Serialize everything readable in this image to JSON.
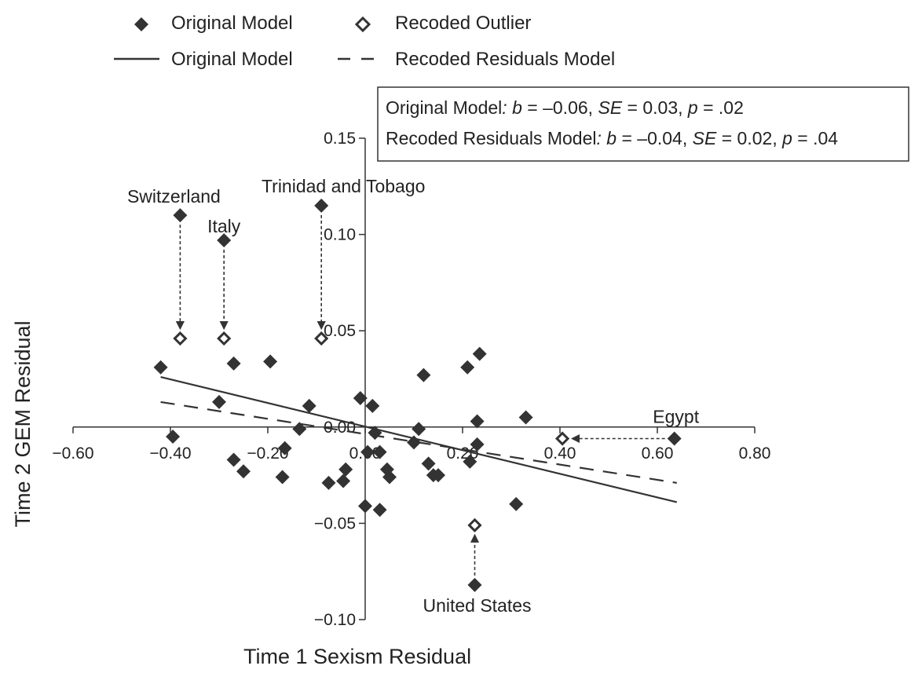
{
  "chart_data": {
    "type": "scatter",
    "title": "",
    "xlabel": "Time 1 Sexism Residual",
    "ylabel": "Time 2 GEM Residual",
    "xlim": [
      -0.6,
      0.8
    ],
    "ylim": [
      -0.1,
      0.15
    ],
    "x_ticks": [
      "−0.60",
      "−0.40",
      "−0.20",
      "0.00",
      "0.20",
      "0.40",
      "0.60",
      "0.80"
    ],
    "x_tick_values": [
      -0.6,
      -0.4,
      -0.2,
      0.0,
      0.2,
      0.4,
      0.6,
      0.8
    ],
    "y_ticks": [
      "0.15",
      "0.10",
      "0.05",
      "0.00",
      "−0.05",
      "−0.10"
    ],
    "y_tick_values": [
      0.15,
      0.1,
      0.05,
      0.0,
      -0.05,
      -0.1
    ],
    "grid": false,
    "legend": {
      "placement": "top-left",
      "entries": [
        {
          "label": "Original Model",
          "kind": "filled-diamond"
        },
        {
          "label": "Recoded Outlier",
          "kind": "open-diamond"
        },
        {
          "label": "Original Model",
          "kind": "solid-line"
        },
        {
          "label": "Recoded Residuals Model",
          "kind": "dashed-line"
        }
      ]
    },
    "stats_box": {
      "line1": {
        "model": "Original Model",
        "b": "–0.06",
        "se": "0.03",
        "p": ".02"
      },
      "line2": {
        "model": "Recoded Residuals Model",
        "b": "–0.04",
        "se": "0.02",
        "p": ".04"
      }
    },
    "series": [
      {
        "name": "Original Model",
        "marker": "filled-diamond",
        "points": [
          {
            "x": -0.38,
            "y": 0.11
          },
          {
            "x": -0.29,
            "y": 0.097
          },
          {
            "x": -0.09,
            "y": 0.115
          },
          {
            "x": -0.42,
            "y": 0.031
          },
          {
            "x": -0.27,
            "y": 0.033
          },
          {
            "x": -0.195,
            "y": 0.034
          },
          {
            "x": -0.3,
            "y": 0.013
          },
          {
            "x": -0.395,
            "y": -0.005
          },
          {
            "x": -0.27,
            "y": -0.017
          },
          {
            "x": -0.25,
            "y": -0.023
          },
          {
            "x": -0.165,
            "y": -0.011
          },
          {
            "x": -0.17,
            "y": -0.026
          },
          {
            "x": -0.135,
            "y": -0.001
          },
          {
            "x": -0.115,
            "y": 0.011
          },
          {
            "x": -0.075,
            "y": -0.029
          },
          {
            "x": -0.045,
            "y": -0.028
          },
          {
            "x": -0.04,
            "y": -0.022
          },
          {
            "x": -0.01,
            "y": 0.015
          },
          {
            "x": 0.005,
            "y": -0.013
          },
          {
            "x": 0.0,
            "y": -0.041
          },
          {
            "x": 0.015,
            "y": 0.011
          },
          {
            "x": 0.02,
            "y": -0.003
          },
          {
            "x": 0.03,
            "y": -0.013
          },
          {
            "x": 0.03,
            "y": -0.043
          },
          {
            "x": 0.045,
            "y": -0.022
          },
          {
            "x": 0.05,
            "y": -0.026
          },
          {
            "x": 0.1,
            "y": -0.008
          },
          {
            "x": 0.11,
            "y": -0.001
          },
          {
            "x": 0.12,
            "y": 0.027
          },
          {
            "x": 0.13,
            "y": -0.019
          },
          {
            "x": 0.14,
            "y": -0.025
          },
          {
            "x": 0.15,
            "y": -0.025
          },
          {
            "x": 0.21,
            "y": 0.031
          },
          {
            "x": 0.215,
            "y": -0.018
          },
          {
            "x": 0.235,
            "y": 0.038
          },
          {
            "x": 0.23,
            "y": 0.003
          },
          {
            "x": 0.23,
            "y": -0.009
          },
          {
            "x": 0.31,
            "y": -0.04
          },
          {
            "x": 0.33,
            "y": 0.005
          },
          {
            "x": 0.635,
            "y": -0.006
          },
          {
            "x": 0.225,
            "y": -0.082
          }
        ]
      },
      {
        "name": "Recoded Outlier",
        "marker": "open-diamond",
        "points": [
          {
            "x": -0.38,
            "y": 0.046
          },
          {
            "x": -0.29,
            "y": 0.046
          },
          {
            "x": -0.09,
            "y": 0.046
          },
          {
            "x": 0.405,
            "y": -0.006
          },
          {
            "x": 0.225,
            "y": -0.051
          }
        ]
      }
    ],
    "lines": [
      {
        "name": "Original Model",
        "style": "solid",
        "x": [
          -0.42,
          0.64
        ],
        "y": [
          0.026,
          -0.039
        ]
      },
      {
        "name": "Recoded Residuals Model",
        "style": "dashed",
        "x": [
          -0.42,
          0.64
        ],
        "y": [
          0.013,
          -0.029
        ]
      }
    ],
    "annotations": [
      {
        "text": "Switzerland",
        "from": {
          "x": -0.38,
          "y": 0.11
        },
        "to": {
          "x": -0.38,
          "y": 0.046
        }
      },
      {
        "text": "Italy",
        "from": {
          "x": -0.29,
          "y": 0.097
        },
        "to": {
          "x": -0.29,
          "y": 0.046
        }
      },
      {
        "text": "Trinidad and Tobago",
        "from": {
          "x": -0.09,
          "y": 0.115
        },
        "to": {
          "x": -0.09,
          "y": 0.046
        }
      },
      {
        "text": "Egypt",
        "from": {
          "x": 0.635,
          "y": -0.006
        },
        "to": {
          "x": 0.405,
          "y": -0.006
        }
      },
      {
        "text": "United States",
        "from": {
          "x": 0.225,
          "y": -0.082
        },
        "to": {
          "x": 0.225,
          "y": -0.051
        }
      }
    ]
  }
}
